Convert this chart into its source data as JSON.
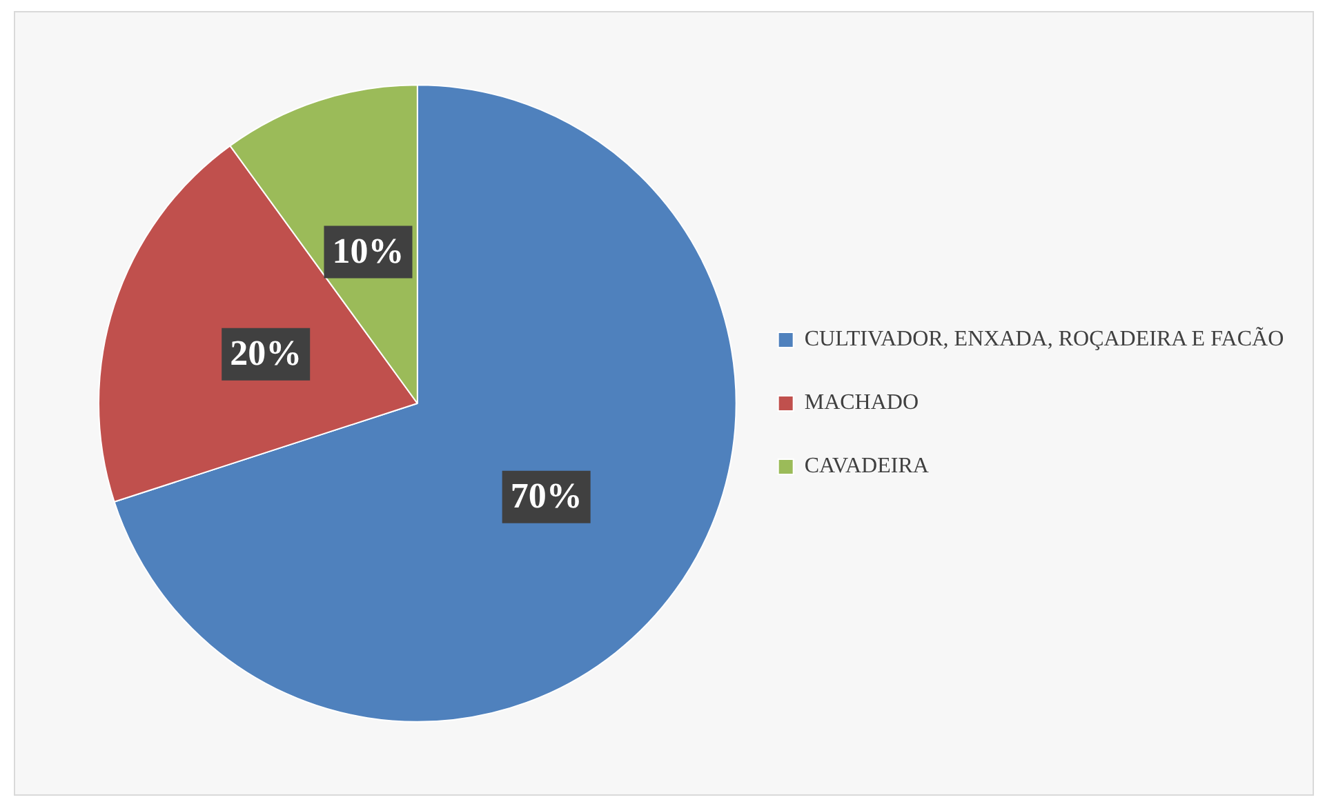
{
  "chart_data": {
    "type": "pie",
    "categories": [
      "CULTIVADOR, ENXADA, ROÇADEIRA E FACÃO",
      "MACHADO",
      "CAVADEIRA"
    ],
    "values": [
      70,
      20,
      10
    ],
    "colors": [
      "#4f81bd",
      "#c0504d",
      "#9bbb59"
    ],
    "value_labels": [
      "70%",
      "20%",
      "10%"
    ],
    "legend": "right"
  }
}
